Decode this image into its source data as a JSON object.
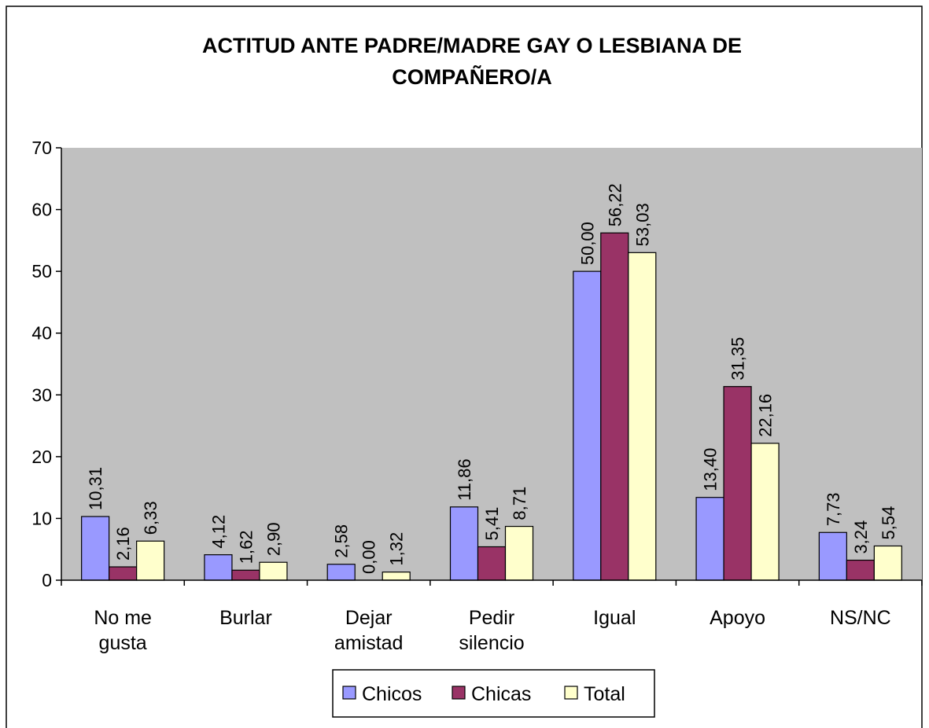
{
  "chart_data": {
    "type": "bar",
    "title": "ACTITUD ANTE PADRE/MADRE GAY O LESBIANA DE COMPAÑERO/A",
    "categories": [
      "No me gusta",
      "Burlar",
      "Dejar amistad",
      "Pedir silencio",
      "Igual",
      "Apoyo",
      "NS/NC"
    ],
    "series": [
      {
        "name": "Chicos",
        "color": "#9999ff",
        "values": [
          10.31,
          4.12,
          2.58,
          11.86,
          50.0,
          13.4,
          7.73
        ],
        "value_labels": [
          "10,31",
          "4,12",
          "2,58",
          "11,86",
          "50,00",
          "13,40",
          "7,73"
        ]
      },
      {
        "name": "Chicas",
        "color": "#993366",
        "values": [
          2.16,
          1.62,
          0.0,
          5.41,
          56.22,
          31.35,
          3.24
        ],
        "value_labels": [
          "2,16",
          "1,62",
          "0,00",
          "5,41",
          "56,22",
          "31,35",
          "3,24"
        ]
      },
      {
        "name": "Total",
        "color": "#ffffcc",
        "values": [
          6.33,
          2.9,
          1.32,
          8.71,
          53.03,
          22.16,
          5.54
        ],
        "value_labels": [
          "6,33",
          "2,90",
          "1,32",
          "8,71",
          "53,03",
          "22,16",
          "5,54"
        ]
      }
    ],
    "ylim": [
      0,
      70
    ],
    "yticks": [
      0,
      10,
      20,
      30,
      40,
      50,
      60,
      70
    ],
    "legend": "bottom",
    "plot_background": "#c0c0c0"
  }
}
